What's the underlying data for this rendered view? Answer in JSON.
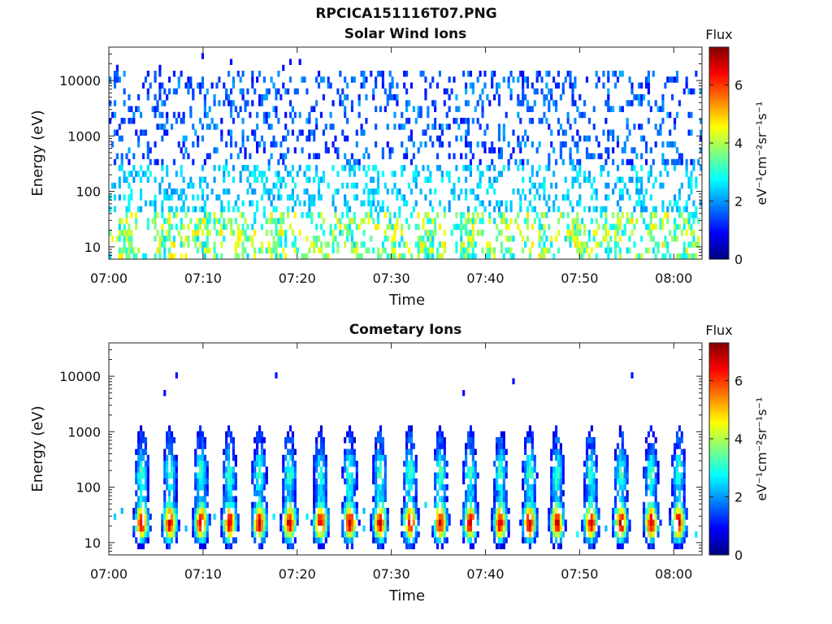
{
  "page_title": "RPCICA151116T07.PNG",
  "colors": {
    "jet_stops": [
      "#00007f",
      "#0000ff",
      "#007fff",
      "#00ffff",
      "#7fff7f",
      "#ffff00",
      "#ff7f00",
      "#ff0000",
      "#7f0000"
    ]
  },
  "chart_data": [
    {
      "type": "heatmap",
      "title": "Solar Wind Ions",
      "xlabel": "Time",
      "ylabel": "Energy (eV)",
      "x_range": [
        "07:00",
        "08:03"
      ],
      "x_ticks": [
        "07:00",
        "07:10",
        "07:20",
        "07:30",
        "07:40",
        "07:50",
        "08:00"
      ],
      "y_scale": "log",
      "ylim": [
        6,
        40000
      ],
      "y_ticks": [
        "10",
        "100",
        "1000",
        "10000"
      ],
      "colorbar": {
        "title": "Flux",
        "label": "eV⁻¹cm⁻²sr⁻¹s⁻¹",
        "ticks": [
          "0",
          "2",
          "4",
          "6"
        ],
        "range": [
          0,
          7.3
        ]
      },
      "pattern": "sparse blue counts 100–15000 eV, green-yellow bursts near 15–40 eV every ~4 min"
    },
    {
      "type": "heatmap",
      "title": "Cometary Ions",
      "xlabel": "Time",
      "ylabel": "Energy (eV)",
      "x_range": [
        "07:00",
        "08:03"
      ],
      "x_ticks": [
        "07:00",
        "07:10",
        "07:20",
        "07:30",
        "07:40",
        "07:50",
        "08:00"
      ],
      "y_scale": "log",
      "ylim": [
        6,
        40000
      ],
      "y_ticks": [
        "10",
        "100",
        "1000",
        "10000"
      ],
      "colorbar": {
        "title": "Flux",
        "label": "eV⁻¹cm⁻²sr⁻¹s⁻¹",
        "ticks": [
          "0",
          "2",
          "4",
          "6"
        ],
        "range": [
          0,
          7.3
        ]
      },
      "burst_times_min": [
        3.5,
        6.5,
        9.8,
        12.8,
        16,
        19.2,
        22.5,
        25.6,
        28.8,
        32,
        35.2,
        38.4,
        41.6,
        44.7,
        47.6,
        51.2,
        54.4,
        57.6,
        60.5
      ],
      "pattern": "periodic V-shaped bursts: red/orange 15–40 eV, fading to blue up to ~1000 eV"
    }
  ]
}
